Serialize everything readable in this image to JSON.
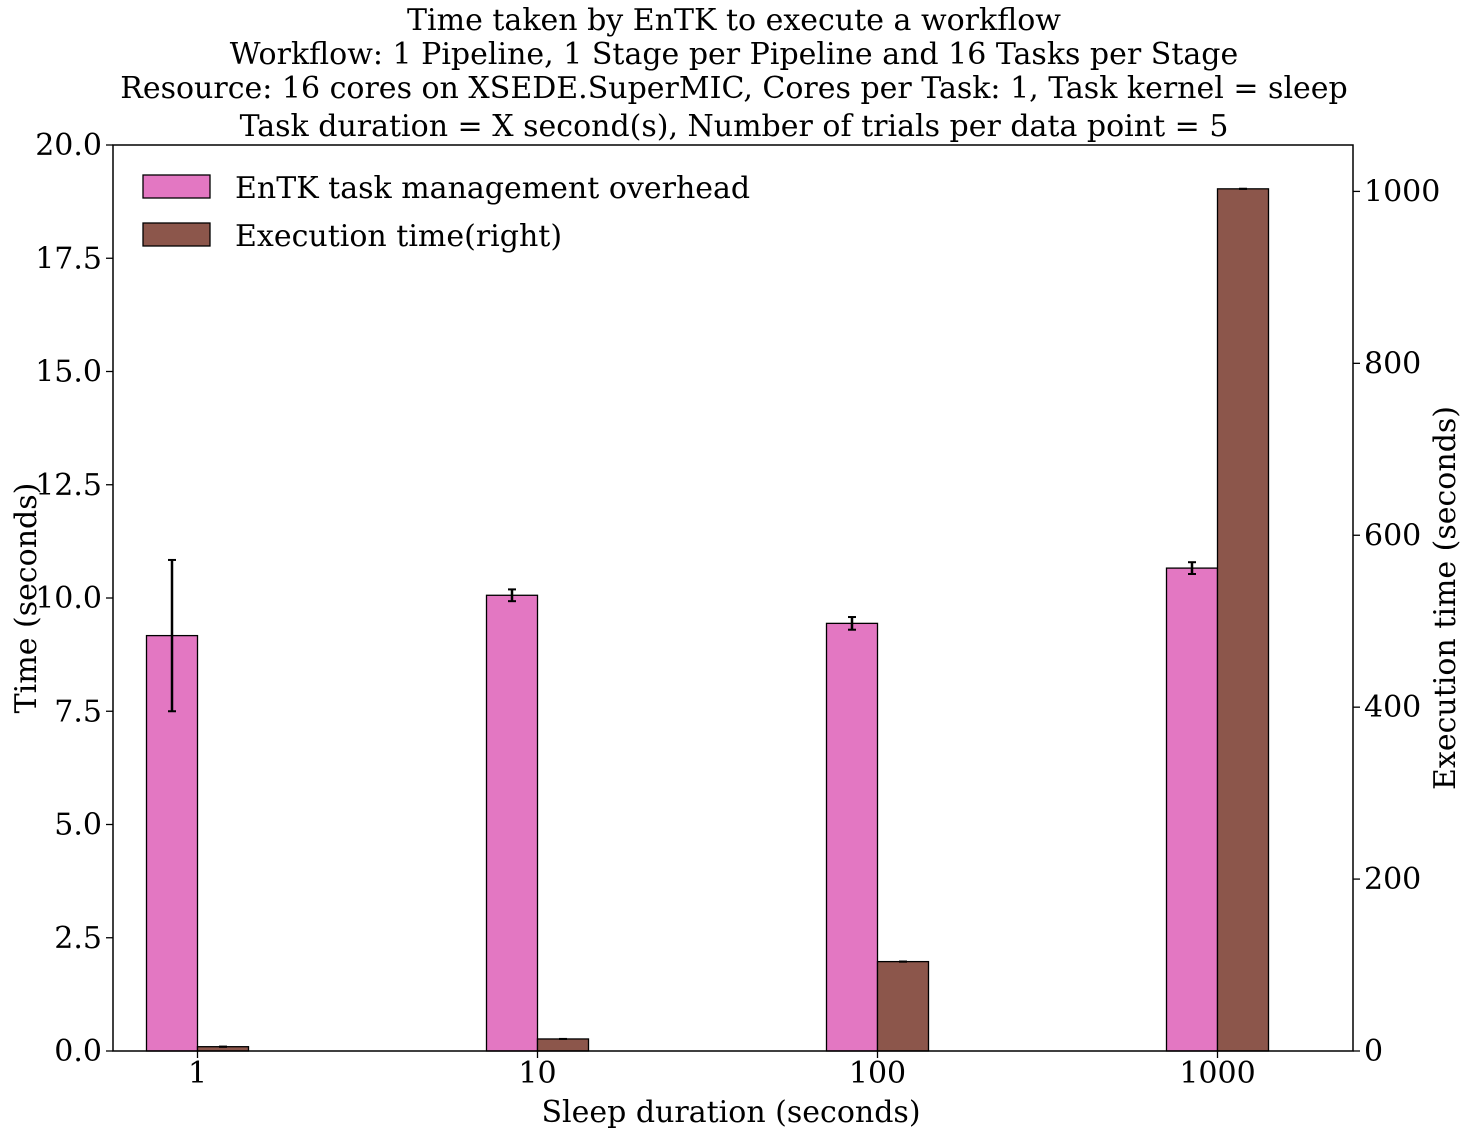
{
  "chart_data": {
    "type": "bar",
    "title_lines": [
      "Time taken by EnTK to execute a workflow",
      "Workflow: 1 Pipeline, 1 Stage per Pipeline and 16 Tasks per Stage",
      "Resource: 16 cores on XSEDE.SuperMIC, Cores per Task: 1, Task kernel = sleep",
      "Task duration = X second(s), Number of trials per data point = 5"
    ],
    "xlabel": "Sleep duration (seconds)",
    "ylabel_left": "Time (seconds)",
    "ylabel_right": "Execution time (seconds)",
    "categories": [
      "1",
      "10",
      "100",
      "1000"
    ],
    "ylim_left": [
      0,
      20
    ],
    "ylim_right": [
      0,
      1054
    ],
    "yticks_left": [
      "0.0",
      "2.5",
      "5.0",
      "7.5",
      "10.0",
      "12.5",
      "15.0",
      "17.5",
      "20.0"
    ],
    "yticks_right": [
      "0",
      "200",
      "400",
      "600",
      "800",
      "1000"
    ],
    "legend_position": "top-left",
    "grid": false,
    "series": [
      {
        "name": "EnTK task management overhead",
        "axis": "left",
        "color": "#e377c2",
        "values": [
          9.17,
          10.06,
          9.44,
          10.66
        ],
        "errors": [
          1.67,
          0.13,
          0.14,
          0.13
        ]
      },
      {
        "name": "Execution time(right)",
        "axis": "right",
        "color": "#8c564b",
        "values": [
          5,
          14,
          104,
          1003
        ],
        "errors": [
          0,
          0,
          0,
          0
        ]
      }
    ]
  }
}
